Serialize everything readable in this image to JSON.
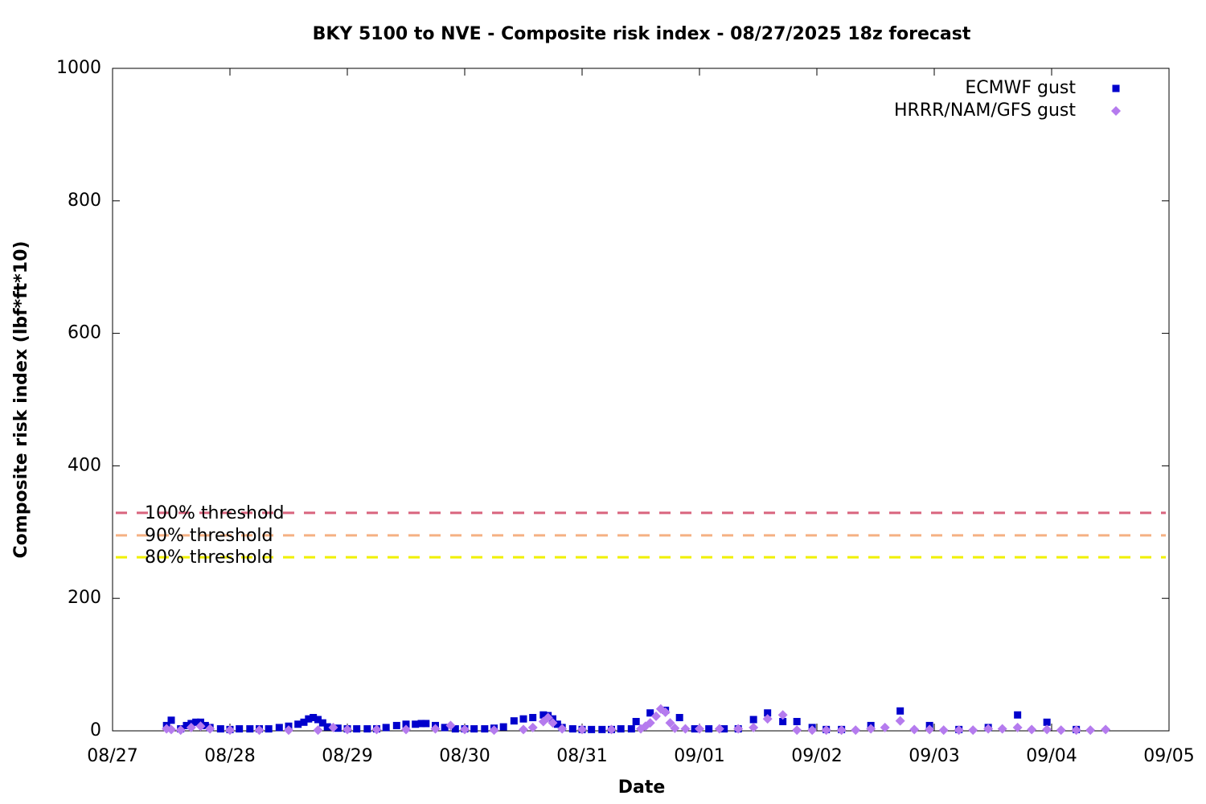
{
  "chart_data": {
    "type": "scatter",
    "title": "BKY 5100 to NVE - Composite risk index - 08/27/2025 18z forecast",
    "x_label": "Date",
    "y_label": "Composite risk index (lbf*ft*10)",
    "xlim": [
      0,
      9
    ],
    "xticks": [
      {
        "value": 0,
        "label": "08/27"
      },
      {
        "value": 1,
        "label": "08/28"
      },
      {
        "value": 2,
        "label": "08/29"
      },
      {
        "value": 3,
        "label": "08/30"
      },
      {
        "value": 4,
        "label": "08/31"
      },
      {
        "value": 5,
        "label": "09/01"
      },
      {
        "value": 6,
        "label": "09/02"
      },
      {
        "value": 7,
        "label": "09/03"
      },
      {
        "value": 8,
        "label": "09/04"
      },
      {
        "value": 9,
        "label": "09/05"
      }
    ],
    "ylim": [
      0,
      1000
    ],
    "yticks": [
      0,
      200,
      400,
      600,
      800,
      1000
    ],
    "legend": "top-right",
    "thresholds": [
      {
        "label": "100% threshold",
        "value": 329,
        "color": "#d9647e"
      },
      {
        "label": "90% threshold",
        "value": 295,
        "color": "#f5b183"
      },
      {
        "label": "80% threshold",
        "value": 262,
        "color": "#f0f000"
      }
    ],
    "series": [
      {
        "name": "ECMWF gust",
        "color": "#0000cc",
        "marker": "square",
        "x": [
          0.46,
          0.5,
          0.58,
          0.63,
          0.67,
          0.71,
          0.75,
          0.79,
          0.83,
          0.92,
          1.0,
          1.08,
          1.17,
          1.25,
          1.33,
          1.42,
          1.5,
          1.58,
          1.63,
          1.67,
          1.71,
          1.75,
          1.79,
          1.83,
          1.92,
          2.0,
          2.08,
          2.17,
          2.25,
          2.33,
          2.42,
          2.5,
          2.58,
          2.63,
          2.67,
          2.75,
          2.83,
          2.92,
          3.0,
          3.08,
          3.17,
          3.25,
          3.33,
          3.42,
          3.5,
          3.58,
          3.67,
          3.71,
          3.75,
          3.79,
          3.83,
          3.92,
          4.0,
          4.08,
          4.17,
          4.25,
          4.33,
          4.42,
          4.46,
          4.58,
          4.71,
          4.83,
          4.96,
          5.08,
          5.21,
          5.33,
          5.46,
          5.58,
          5.71,
          5.83,
          5.96,
          6.08,
          6.21,
          6.46,
          6.71,
          6.96,
          7.21,
          7.46,
          7.71,
          7.96,
          8.21
        ],
        "values": [
          8,
          16,
          3,
          8,
          11,
          13,
          13,
          8,
          5,
          3,
          2,
          3,
          3,
          3,
          3,
          5,
          7,
          10,
          13,
          18,
          20,
          17,
          12,
          6,
          4,
          3,
          3,
          3,
          3,
          5,
          8,
          10,
          10,
          11,
          11,
          8,
          5,
          3,
          3,
          3,
          3,
          4,
          6,
          15,
          18,
          20,
          24,
          23,
          18,
          10,
          5,
          3,
          2,
          2,
          2,
          2,
          3,
          3,
          14,
          27,
          31,
          20,
          3,
          3,
          3,
          3,
          17,
          27,
          14,
          14,
          5,
          2,
          2,
          8,
          30,
          8,
          2,
          5,
          24,
          13,
          2
        ]
      },
      {
        "name": "HRRR/NAM/GFS gust",
        "color": "#b57bee",
        "marker": "diamond",
        "x": [
          0.46,
          0.5,
          0.58,
          0.67,
          0.75,
          0.83,
          1.0,
          1.25,
          1.5,
          1.75,
          1.88,
          2.0,
          2.25,
          2.5,
          2.75,
          2.88,
          3.0,
          3.25,
          3.5,
          3.58,
          3.67,
          3.71,
          3.75,
          3.83,
          4.0,
          4.25,
          4.5,
          4.54,
          4.58,
          4.63,
          4.67,
          4.71,
          4.75,
          4.79,
          4.88,
          5.0,
          5.17,
          5.33,
          5.46,
          5.58,
          5.71,
          5.83,
          5.96,
          6.08,
          6.21,
          6.33,
          6.46,
          6.58,
          6.71,
          6.83,
          6.96,
          7.08,
          7.21,
          7.33,
          7.46,
          7.58,
          7.71,
          7.83,
          7.96,
          8.08,
          8.21,
          8.33,
          8.46
        ],
        "values": [
          3,
          2,
          1,
          5,
          7,
          3,
          1,
          1,
          1,
          1,
          5,
          2,
          2,
          2,
          3,
          8,
          2,
          1,
          2,
          5,
          14,
          20,
          12,
          3,
          2,
          2,
          3,
          7,
          12,
          22,
          33,
          28,
          12,
          4,
          3,
          3,
          3,
          3,
          5,
          18,
          24,
          1,
          1,
          1,
          1,
          1,
          3,
          5,
          15,
          2,
          2,
          1,
          1,
          1,
          3,
          3,
          5,
          2,
          2,
          1,
          1,
          1,
          2
        ]
      }
    ]
  }
}
